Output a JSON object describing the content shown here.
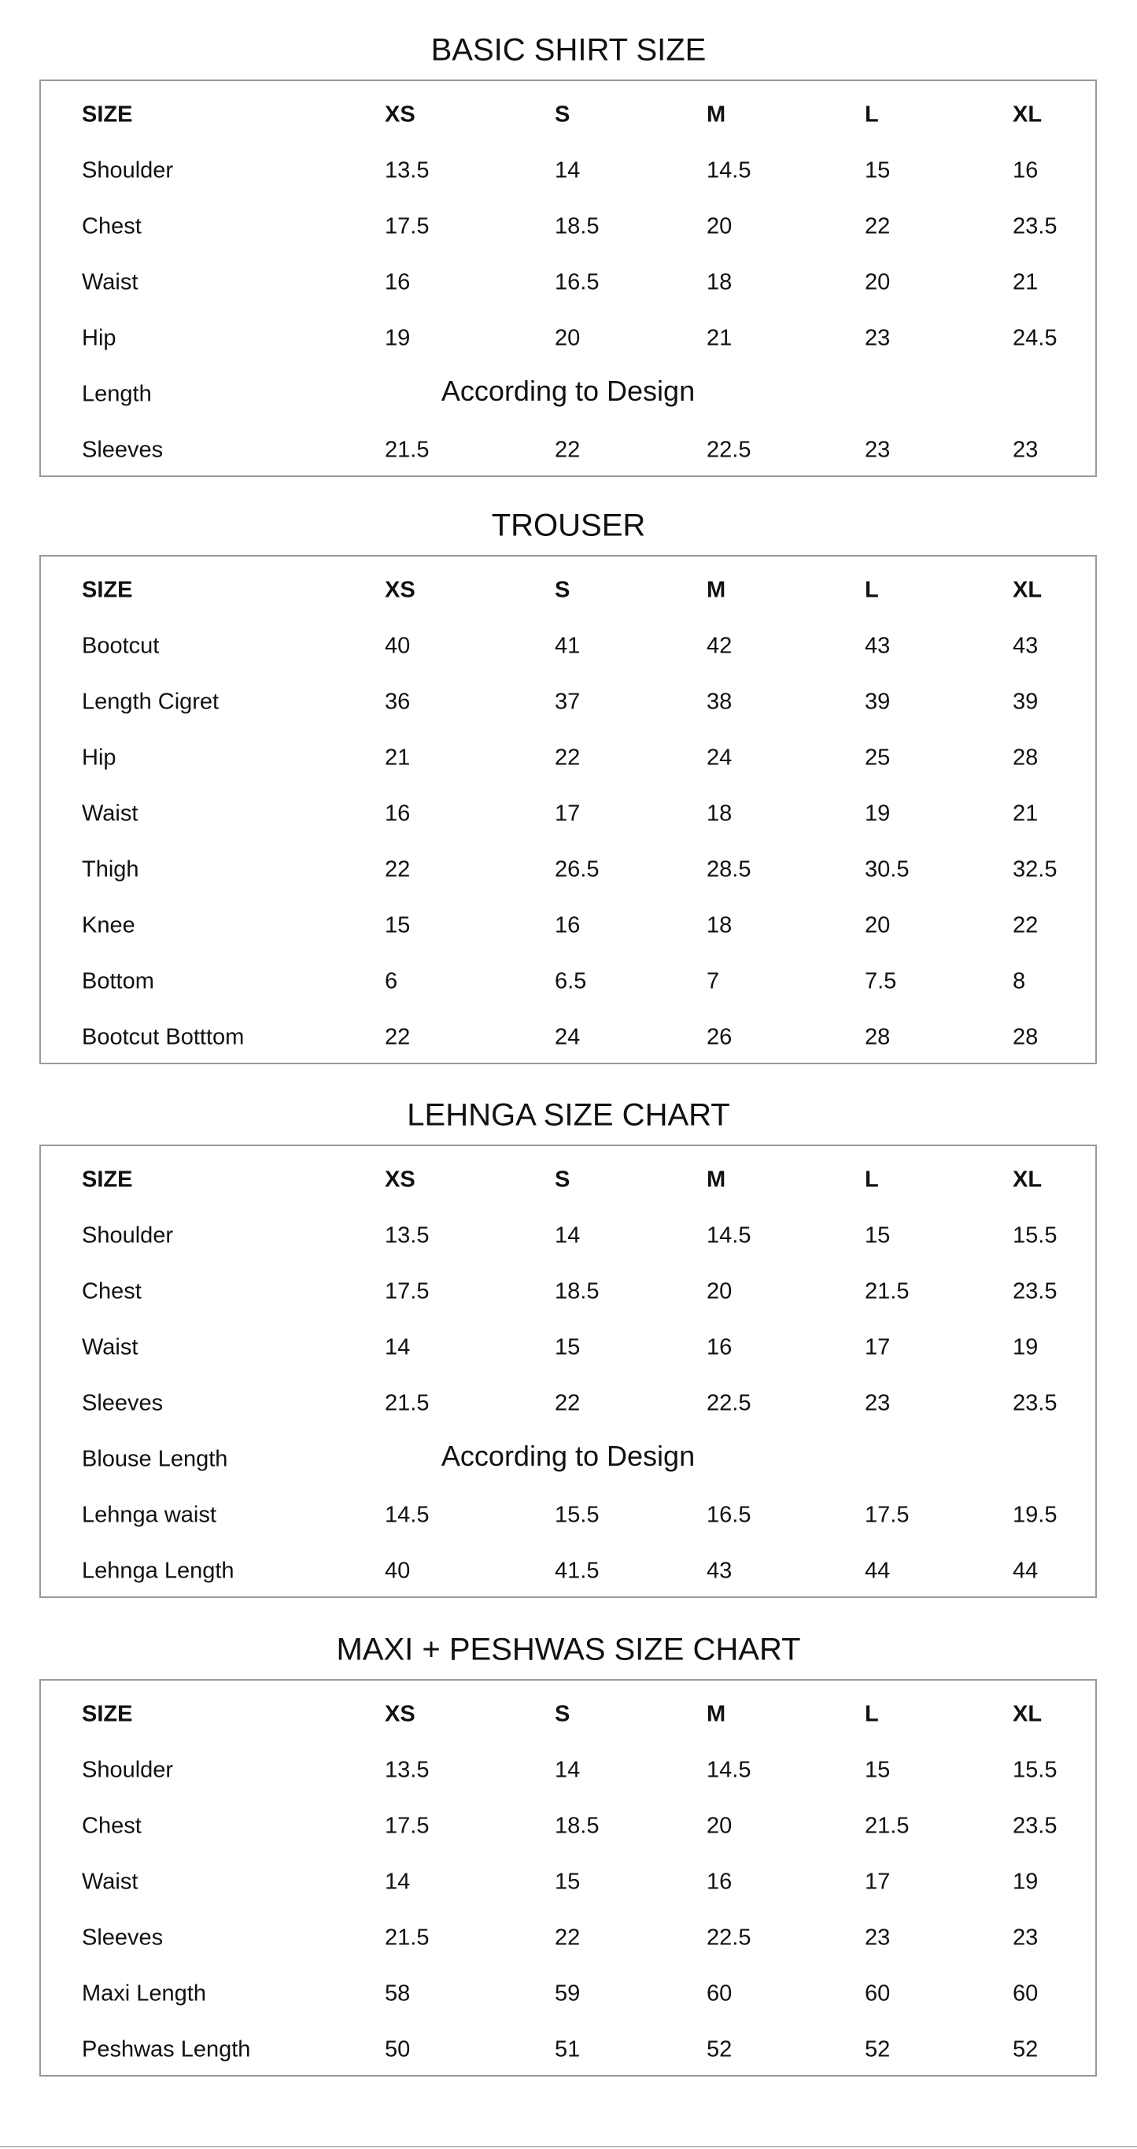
{
  "tables": [
    {
      "title": "BASIC SHIRT SIZE",
      "header": [
        "SIZE",
        "XS",
        "S",
        "M",
        "L",
        "XL"
      ],
      "rows": [
        [
          "Shoulder",
          "13.5",
          "14",
          "14.5",
          "15",
          "16"
        ],
        [
          "Chest",
          "17.5",
          "18.5",
          "20",
          "22",
          "23.5"
        ],
        [
          "Waist",
          "16",
          "16.5",
          "18",
          "20",
          "21"
        ],
        [
          "Hip",
          "19",
          "20",
          "21",
          "23",
          "24.5"
        ],
        [
          "Length",
          "According to Design"
        ],
        [
          "Sleeves",
          "21.5",
          "22",
          "22.5",
          "23",
          "23"
        ]
      ]
    },
    {
      "title": "TROUSER",
      "header": [
        "SIZE",
        "XS",
        "S",
        "M",
        "L",
        "XL"
      ],
      "rows": [
        [
          "Bootcut",
          "40",
          "41",
          "42",
          "43",
          "43"
        ],
        [
          "Length Cigret",
          "36",
          "37",
          "38",
          "39",
          "39"
        ],
        [
          "Hip",
          "21",
          "22",
          "24",
          "25",
          "28"
        ],
        [
          "Waist",
          "16",
          "17",
          "18",
          "19",
          "21"
        ],
        [
          "Thigh",
          "22",
          "26.5",
          "28.5",
          "30.5",
          "32.5"
        ],
        [
          "Knee",
          "15",
          "16",
          "18",
          "20",
          "22"
        ],
        [
          "Bottom",
          "6",
          "6.5",
          "7",
          "7.5",
          "8"
        ],
        [
          "Bootcut Botttom",
          "22",
          "24",
          "26",
          "28",
          "28"
        ]
      ]
    },
    {
      "title": "LEHNGA SIZE CHART",
      "header": [
        "SIZE",
        "XS",
        "S",
        "M",
        "L",
        "XL"
      ],
      "rows": [
        [
          "Shoulder",
          "13.5",
          "14",
          "14.5",
          "15",
          "15.5"
        ],
        [
          "Chest",
          "17.5",
          "18.5",
          "20",
          "21.5",
          "23.5"
        ],
        [
          "Waist",
          "14",
          "15",
          "16",
          "17",
          "19"
        ],
        [
          "Sleeves",
          "21.5",
          "22",
          "22.5",
          "23",
          "23.5"
        ],
        [
          "Blouse Length",
          "According to Design"
        ],
        [
          "Lehnga waist",
          "14.5",
          "15.5",
          "16.5",
          "17.5",
          "19.5"
        ],
        [
          "Lehnga Length",
          "40",
          "41.5",
          "43",
          "44",
          "44"
        ]
      ]
    },
    {
      "title": "MAXI + PESHWAS SIZE CHART",
      "header": [
        "SIZE",
        "XS",
        "S",
        "M",
        "L",
        "XL"
      ],
      "rows": [
        [
          "Shoulder",
          "13.5",
          "14",
          "14.5",
          "15",
          "15.5"
        ],
        [
          "Chest",
          "17.5",
          "18.5",
          "20",
          "21.5",
          "23.5"
        ],
        [
          "Waist",
          "14",
          "15",
          "16",
          "17",
          "19"
        ],
        [
          "Sleeves",
          "21.5",
          "22",
          "22.5",
          "23",
          "23"
        ],
        [
          "Maxi Length",
          "58",
          "59",
          "60",
          "60",
          "60"
        ],
        [
          "Peshwas Length",
          "50",
          "51",
          "52",
          "52",
          "52"
        ]
      ]
    }
  ]
}
